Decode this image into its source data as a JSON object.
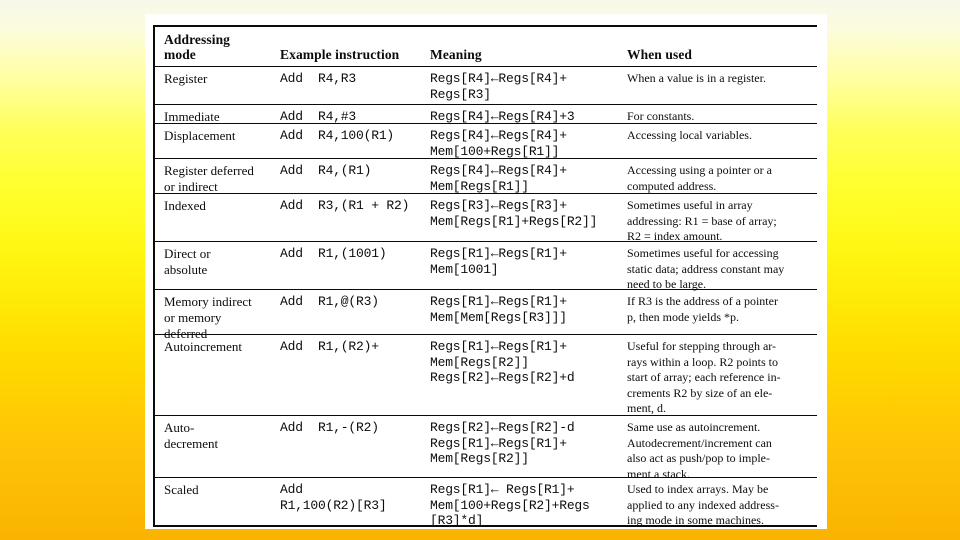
{
  "slide": {
    "table": {
      "headers": [
        "Addressing\nmode",
        "Example instruction",
        "Meaning",
        "When used"
      ],
      "rows": [
        {
          "mode": "Register",
          "example": "Add  R4,R3",
          "meaning": "Regs[R4]←Regs[R4]+\nRegs[R3]",
          "when": "When a value is in a register."
        },
        {
          "mode": "Immediate",
          "example": "Add  R4,#3",
          "meaning": "Regs[R4]←Regs[R4]+3",
          "when": "For constants."
        },
        {
          "mode": "Displacement",
          "example": "Add  R4,100(R1)",
          "meaning": "Regs[R4]←Regs[R4]+\nMem[100+Regs[R1]]",
          "when": "Accessing local variables."
        },
        {
          "mode": "Register deferred\nor indirect",
          "example": "Add  R4,(R1)",
          "meaning": "Regs[R4]←Regs[R4]+\nMem[Regs[R1]]",
          "when": "Accessing using a pointer or a\ncomputed address."
        },
        {
          "mode": "Indexed",
          "example": "Add  R3,(R1 + R2)",
          "meaning": "Regs[R3]←Regs[R3]+\nMem[Regs[R1]+Regs[R2]]",
          "when": "Sometimes useful in array\naddressing: R1 = base of array;\nR2 = index amount."
        },
        {
          "mode": "Direct or\nabsolute",
          "example": "Add  R1,(1001)",
          "meaning": "Regs[R1]←Regs[R1]+\nMem[1001]",
          "when": "Sometimes useful for accessing\nstatic data; address constant may\nneed to be large."
        },
        {
          "mode": "Memory indirect\nor memory\ndeferred",
          "example": "Add  R1,@(R3)",
          "meaning": "Regs[R1]←Regs[R1]+\nMem[Mem[Regs[R3]]]",
          "when": "If R3 is the address of a pointer\np, then mode yields *p."
        },
        {
          "mode": "Autoincrement",
          "example": "Add  R1,(R2)+",
          "meaning": "Regs[R1]←Regs[R1]+\nMem[Regs[R2]]\nRegs[R2]←Regs[R2]+d",
          "when": "Useful for stepping through ar-\nrays within a loop. R2 points to\nstart of array; each reference in-\ncrements R2 by size of an ele-\nment, d."
        },
        {
          "mode": "Auto-\ndecrement",
          "example": "Add  R1,-(R2)",
          "meaning": "Regs[R2]←Regs[R2]-d\nRegs[R1]←Regs[R1]+\nMem[Regs[R2]]",
          "when": "Same use as autoincrement.\nAutodecrement/increment can\nalso act as push/pop to imple-\nment a stack."
        },
        {
          "mode": "Scaled",
          "example": "Add\nR1,100(R2)[R3]",
          "meaning": "Regs[R1]← Regs[R1]+\nMem[100+Regs[R2]+Regs\n[R3]*d]",
          "when": "Used to index arrays. May be\napplied to any indexed address-\ning mode in some machines."
        }
      ]
    }
  }
}
